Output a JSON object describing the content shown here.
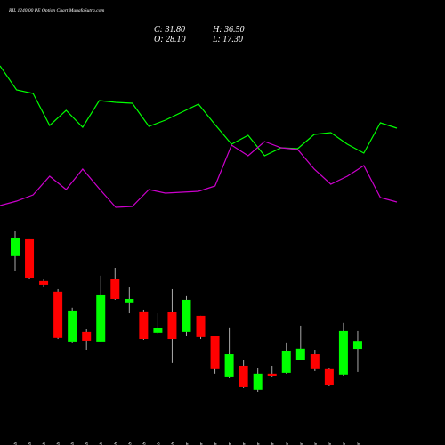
{
  "chart_data": [
    {
      "type": "line",
      "title": "RIL 1240.00 PE Option Chart MunafaSutra.com",
      "ylim": [
        0,
        250
      ],
      "series": [
        {
          "color": "#00ff00",
          "values": [
            176,
            149,
            145,
            109,
            126,
            107,
            137,
            135,
            134,
            108,
            115,
            124,
            133,
            110,
            88,
            98,
            75,
            84,
            83,
            99,
            101,
            88,
            78,
            112,
            106
          ]
        },
        {
          "color": "#cc00cc",
          "values": [
            19,
            24,
            31,
            52,
            37,
            60,
            38,
            17,
            18,
            37,
            33,
            34,
            35,
            41,
            87,
            75,
            91,
            84,
            82,
            60,
            43,
            52,
            64,
            28,
            23
          ]
        }
      ]
    },
    {
      "type": "candlestick",
      "ohlc_labels": [
        "C: 31.80",
        "H: 36.50",
        "O: 28.10",
        "L: 17.30"
      ],
      "categories": [
        "13 Feb",
        "14 Feb",
        "17 Feb",
        "18 Feb",
        "19 Feb",
        "20 Feb",
        "21 Feb",
        "24 Feb",
        "25 Feb",
        "26 Feb",
        "27 Feb",
        "28 Feb",
        "03 Mar",
        "04 Mar",
        "05 Mar",
        "06 Mar",
        "07 Mar",
        "10 Mar",
        "11 Mar",
        "12 Mar",
        "13 Mar",
        "17 Mar",
        "18 Mar",
        "19 Mar",
        "20 Mar"
      ],
      "open": [
        71.6,
        79.9,
        59.9,
        54.9,
        31.5,
        36.1,
        31.5,
        60.7,
        49.9,
        45.7,
        35.7,
        45.3,
        36.1,
        43.6,
        34.0,
        14.8,
        20.2,
        9.0,
        16.5,
        16.9,
        23.1,
        25.6,
        18.6,
        16.1,
        28.1
      ],
      "high": [
        83.3,
        79.9,
        60.7,
        56.1,
        47.4,
        37.3,
        62.4,
        66.1,
        56.9,
        46.5,
        44.8,
        56.1,
        52.8,
        43.6,
        34.0,
        38.2,
        22.7,
        19.0,
        20.2,
        31.1,
        39.0,
        27.7,
        19.0,
        40.3,
        36.5
      ],
      "low": [
        64.5,
        60.7,
        57.0,
        32.7,
        31.1,
        27.7,
        31.5,
        51.1,
        44.8,
        32.3,
        35.3,
        21.5,
        34.0,
        32.7,
        16.5,
        14.4,
        9.8,
        7.7,
        14.8,
        16.5,
        22.7,
        17.7,
        10.6,
        15.6,
        17.3
      ],
      "close": [
        80.3,
        61.5,
        58.2,
        33.2,
        46.1,
        31.9,
        53.6,
        51.5,
        51.5,
        32.7,
        37.8,
        32.7,
        51.1,
        33.6,
        18.6,
        25.6,
        10.2,
        16.5,
        15.2,
        27.3,
        28.2,
        18.6,
        11.0,
        36.5,
        31.8
      ],
      "ylim": [
        6,
        85.3
      ],
      "up_color": "#00ff00",
      "down_color": "#ff0000",
      "wick_color": "#aaaaaa"
    }
  ]
}
